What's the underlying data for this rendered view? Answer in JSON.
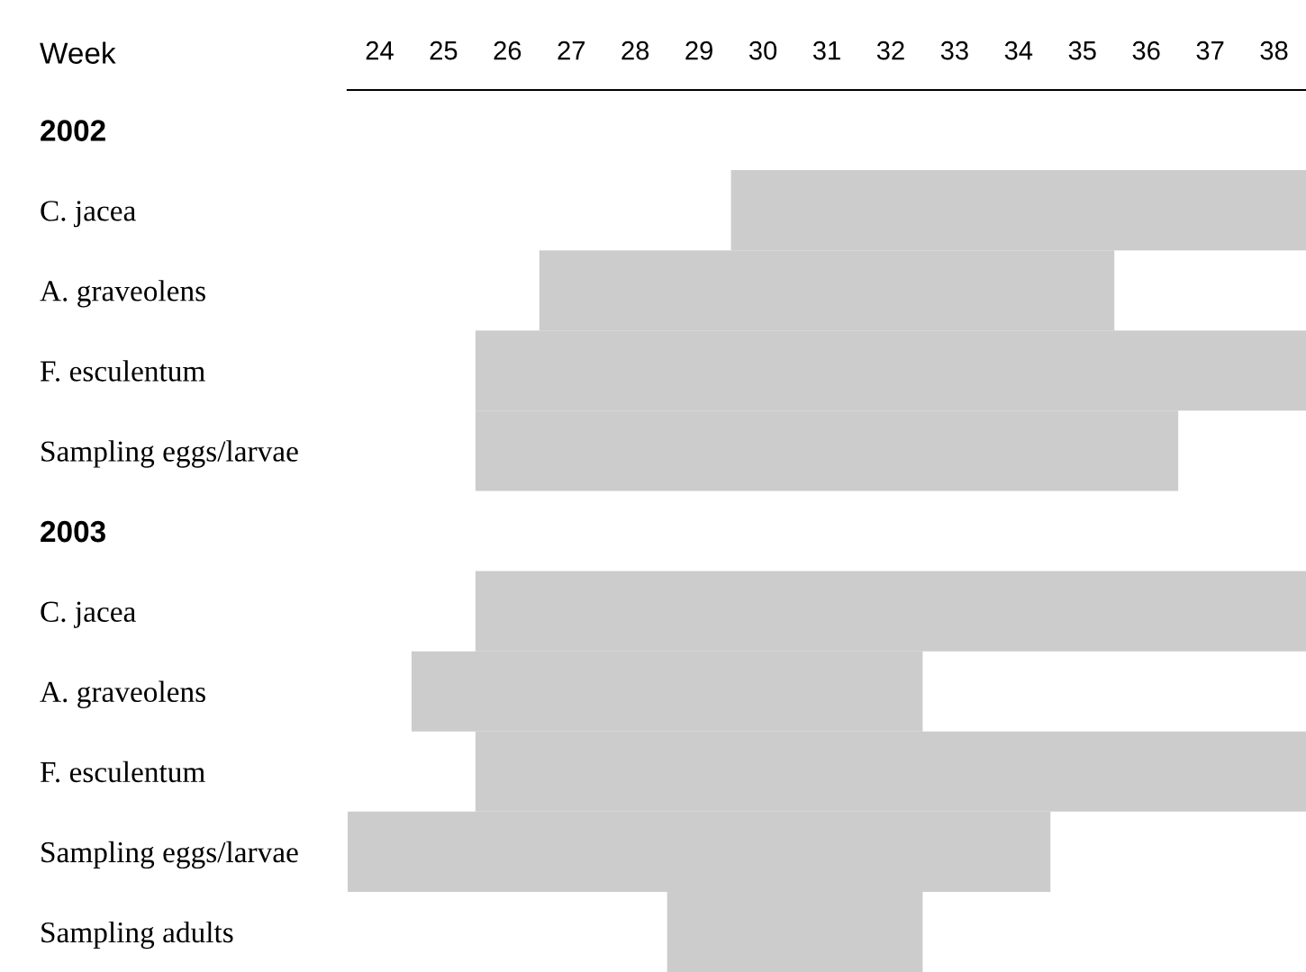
{
  "chart_data": {
    "type": "bar",
    "orientation": "horizontal",
    "xlabel": "Week",
    "categories": [
      "2002",
      "C. jacea",
      "A. graveolens",
      "F. esculentum",
      "Sampling eggs/larvae",
      "2003",
      "C. jacea",
      "A. graveolens",
      "F. esculentum",
      "Sampling eggs/larvae",
      "Sampling adults"
    ],
    "base": [
      null,
      29.5,
      26.5,
      25.5,
      25.5,
      null,
      25.5,
      24.5,
      25.5,
      23.5,
      28.5
    ],
    "values": [
      null,
      9,
      9,
      13,
      11,
      null,
      13,
      8,
      13,
      11,
      4
    ],
    "color": "#cccccc",
    "xlim": [
      23.5,
      38.5
    ],
    "xticks": [
      24,
      25,
      26,
      27,
      28,
      29,
      30,
      31,
      32,
      33,
      34,
      35,
      36,
      37,
      38
    ],
    "grid": false
  }
}
